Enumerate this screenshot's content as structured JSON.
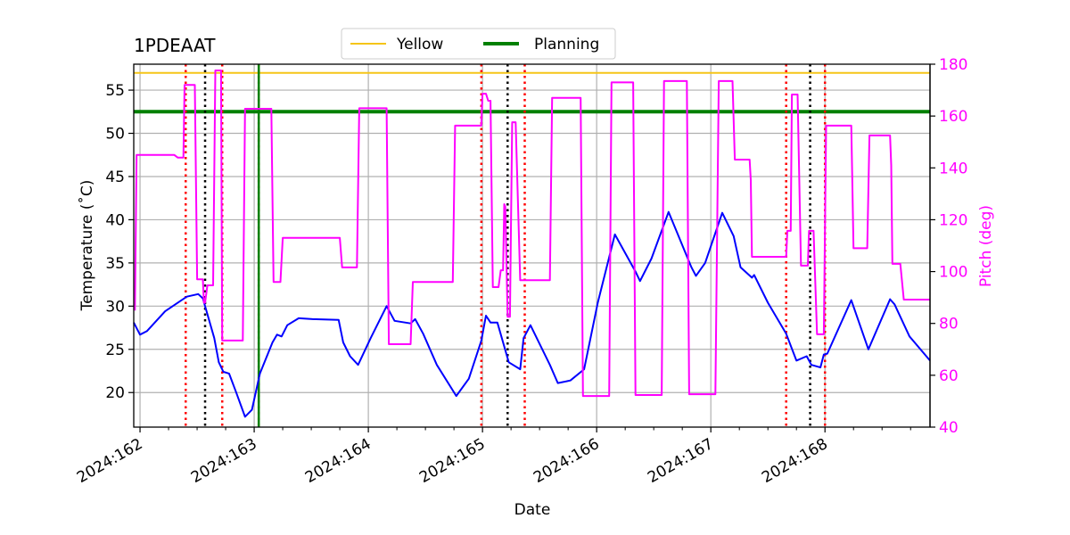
{
  "chart_data": {
    "type": "line",
    "title": "1PDEAAT",
    "xlabel": "Date",
    "ylabel": "Temperature ($^\\circ$C)",
    "ylabel_display": "Temperature (˚C)",
    "y2label": "Pitch (deg)",
    "xlim": [
      161.945,
      168.92
    ],
    "ylim": [
      16,
      58
    ],
    "y2lim": [
      40,
      180
    ],
    "grid": true,
    "x_ticks": [
      162,
      163,
      164,
      165,
      166,
      167,
      168
    ],
    "x_tick_labels": [
      "2024:162",
      "2024:163",
      "2024:164",
      "2024:165",
      "2024:166",
      "2024:167",
      "2024:168"
    ],
    "y_ticks": [
      20,
      25,
      30,
      35,
      40,
      45,
      50,
      55
    ],
    "y2_ticks": [
      40,
      60,
      80,
      100,
      120,
      140,
      160,
      180
    ],
    "legend": {
      "placement": "top-center-outside",
      "entries": [
        {
          "label": "Yellow",
          "color": "#f5c518"
        },
        {
          "label": "Planning",
          "color": "#008000"
        }
      ]
    },
    "hlines": [
      {
        "name": "Yellow",
        "value": 57.0,
        "color": "#f5c518"
      },
      {
        "name": "Planning",
        "value": 52.5,
        "color": "#008000"
      }
    ],
    "vlines": [
      {
        "x": 162.4,
        "color": "#ff0000",
        "style": "dotted"
      },
      {
        "x": 162.57,
        "color": "#000000",
        "style": "dotted"
      },
      {
        "x": 162.72,
        "color": "#ff0000",
        "style": "dotted"
      },
      {
        "x": 163.04,
        "color": "#ff0000",
        "style": "dotted"
      },
      {
        "x": 163.04,
        "color": "#008000",
        "style": "solid"
      },
      {
        "x": 164.99,
        "color": "#ff0000",
        "style": "dotted"
      },
      {
        "x": 165.22,
        "color": "#000000",
        "style": "dotted"
      },
      {
        "x": 165.37,
        "color": "#ff0000",
        "style": "dotted"
      },
      {
        "x": 167.66,
        "color": "#ff0000",
        "style": "dotted"
      },
      {
        "x": 167.87,
        "color": "#000000",
        "style": "dotted"
      },
      {
        "x": 168.0,
        "color": "#ff0000",
        "style": "dotted"
      }
    ],
    "series": [
      {
        "name": "Temperature",
        "axis": "left",
        "color": "#0000ff",
        "x": [
          161.945,
          162.0,
          162.06,
          162.22,
          162.41,
          162.51,
          162.55,
          162.65,
          162.69,
          162.73,
          162.78,
          162.84,
          162.92,
          162.98,
          163.05,
          163.16,
          163.2,
          163.24,
          163.29,
          163.39,
          163.51,
          163.74,
          163.78,
          163.84,
          163.91,
          164.02,
          164.16,
          164.23,
          164.37,
          164.41,
          164.48,
          164.6,
          164.77,
          164.88,
          164.99,
          165.03,
          165.07,
          165.13,
          165.23,
          165.33,
          165.36,
          165.42,
          165.59,
          165.66,
          165.77,
          165.89,
          166.01,
          166.16,
          166.34,
          166.38,
          166.48,
          166.63,
          166.83,
          166.87,
          166.95,
          167.1,
          167.2,
          167.26,
          167.36,
          167.38,
          167.5,
          167.66,
          167.75,
          167.84,
          167.88,
          167.96,
          167.99,
          168.02,
          168.23,
          168.38,
          168.57,
          168.61,
          168.74,
          168.92
        ],
        "y": [
          28.1,
          26.7,
          27.1,
          29.4,
          31.1,
          31.4,
          30.9,
          26.3,
          23.5,
          22.4,
          22.2,
          20.1,
          17.2,
          18.0,
          22.2,
          25.8,
          26.7,
          26.5,
          27.8,
          28.6,
          28.5,
          28.4,
          25.8,
          24.2,
          23.2,
          26.3,
          30.0,
          28.3,
          28.0,
          28.5,
          26.8,
          23.2,
          19.6,
          21.6,
          26.0,
          28.9,
          28.1,
          28.1,
          23.5,
          22.7,
          26.3,
          27.8,
          23.2,
          21.1,
          21.4,
          22.7,
          30.4,
          38.3,
          34.0,
          32.9,
          35.5,
          40.9,
          34.5,
          33.5,
          35.0,
          40.8,
          38.1,
          34.5,
          33.3,
          33.6,
          30.4,
          26.8,
          23.7,
          24.2,
          23.2,
          22.9,
          24.4,
          24.5,
          30.7,
          25.0,
          30.8,
          30.2,
          26.5,
          23.7
        ]
      },
      {
        "name": "Pitch",
        "axis": "right",
        "color": "#ff00ff",
        "x": [
          161.955,
          161.97,
          162.3,
          162.33,
          162.38,
          162.39,
          162.48,
          162.5,
          162.55,
          162.56,
          162.57,
          162.59,
          162.64,
          162.66,
          162.71,
          162.72,
          162.9,
          162.92,
          163.15,
          163.17,
          163.23,
          163.25,
          163.75,
          163.77,
          163.9,
          163.92,
          164.16,
          164.18,
          164.37,
          164.39,
          164.74,
          164.76,
          164.99,
          165.0,
          165.03,
          165.05,
          165.07,
          165.09,
          165.14,
          165.16,
          165.18,
          165.19,
          165.2,
          165.22,
          165.24,
          165.26,
          165.28,
          165.29,
          165.33,
          165.35,
          165.37,
          165.59,
          165.61,
          165.86,
          165.88,
          166.11,
          166.13,
          166.32,
          166.34,
          166.57,
          166.59,
          166.79,
          166.81,
          167.04,
          167.07,
          167.19,
          167.21,
          167.34,
          167.35,
          167.36,
          167.66,
          167.67,
          167.7,
          167.71,
          167.76,
          167.79,
          167.85,
          167.86,
          167.9,
          167.93,
          167.99,
          168.01,
          168.23,
          168.24,
          168.25,
          168.37,
          168.39,
          168.57,
          168.58,
          168.59,
          168.66,
          168.69,
          168.92
        ],
        "y": [
          85,
          145,
          145,
          144,
          144,
          172,
          172,
          97,
          97,
          88,
          88,
          94.7,
          94.7,
          177.6,
          177.6,
          73.4,
          73.4,
          162.8,
          162.8,
          96,
          96,
          113,
          113,
          101.6,
          101.6,
          163,
          163,
          72,
          72,
          96,
          96,
          156.3,
          156.3,
          168.6,
          168.6,
          165.9,
          165.9,
          94,
          94,
          100.5,
          100.5,
          126,
          125,
          82.6,
          82.6,
          157.6,
          157.6,
          157.6,
          96.7,
          96.7,
          96.7,
          96.7,
          167,
          167,
          52,
          52,
          173,
          173,
          52.4,
          52.4,
          173.5,
          173.5,
          52.7,
          52.7,
          173.5,
          173.5,
          143.2,
          143.2,
          135.3,
          105.7,
          105.7,
          115.7,
          115.7,
          168.3,
          168.3,
          102.3,
          102.3,
          115.7,
          115.7,
          75.8,
          75.8,
          156.3,
          156.3,
          134.2,
          109,
          109,
          152.5,
          152.5,
          141,
          103,
          103,
          89.2,
          89.2
        ]
      }
    ]
  }
}
